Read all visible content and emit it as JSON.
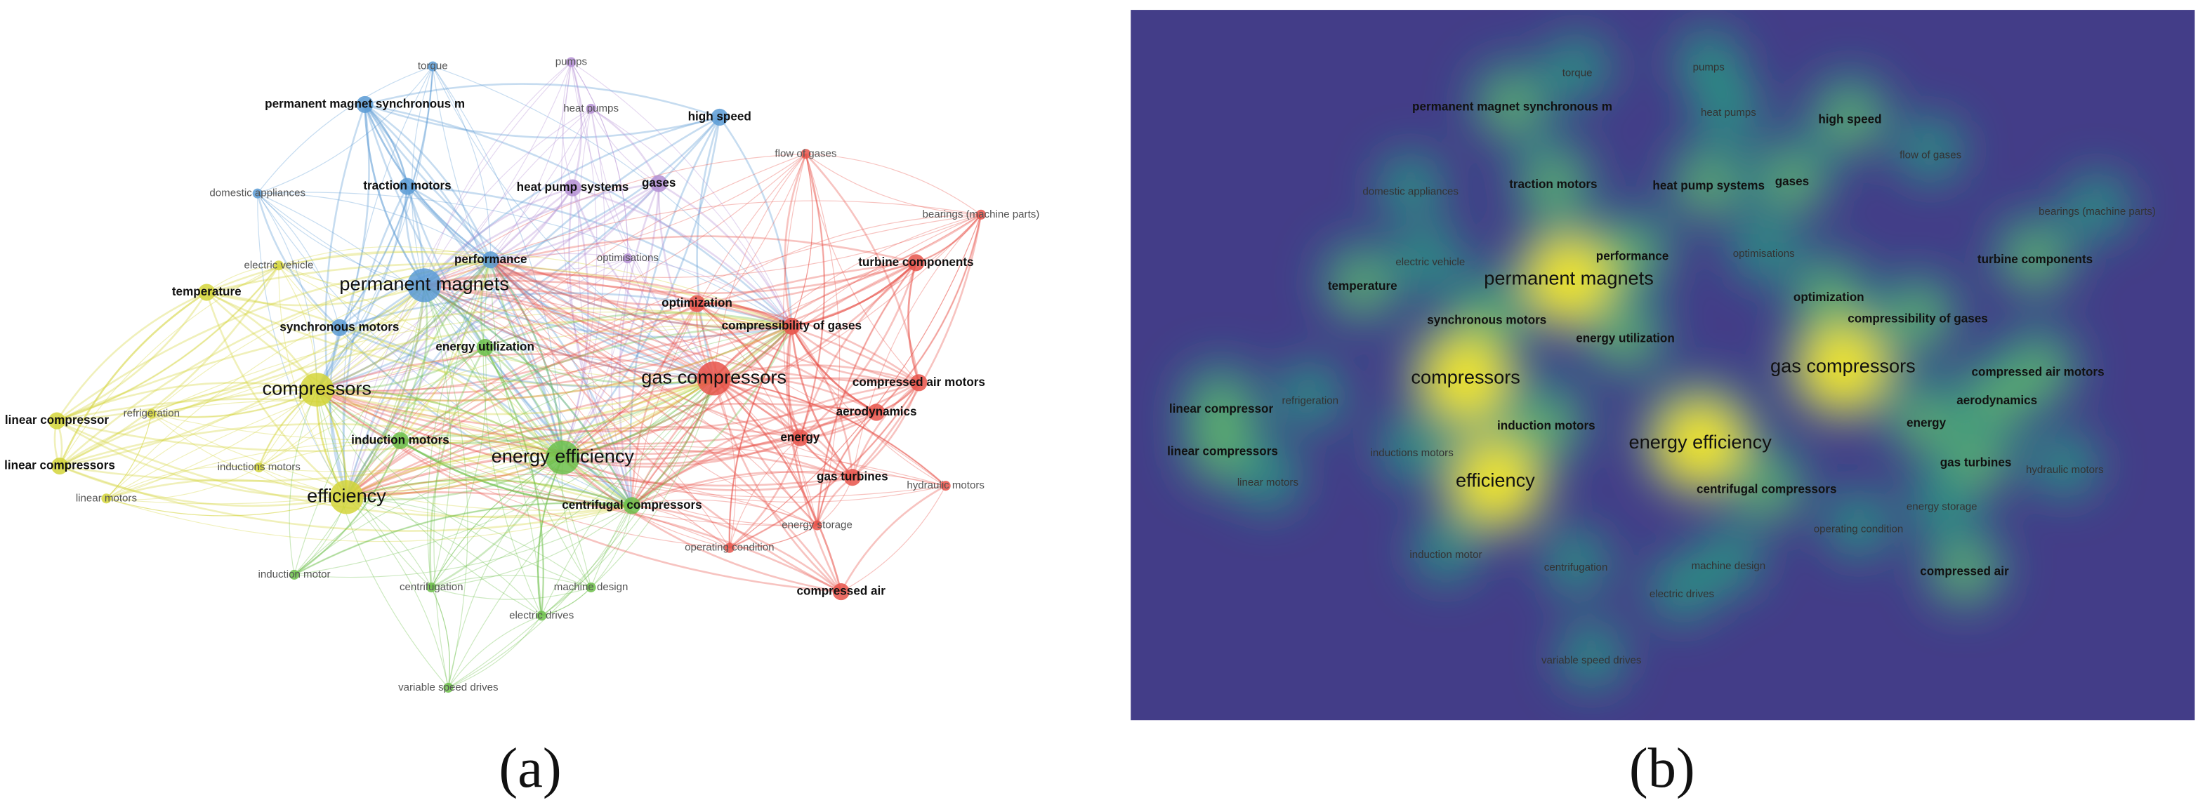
{
  "panel_a": {
    "caption": "(a)",
    "nodes": [
      {
        "label": "torque",
        "color": "#5b9bd5"
      },
      {
        "label": "pumps",
        "color": "#b48fd4"
      },
      {
        "label": "permanent magnet synchronous m",
        "color": "#5b9bd5"
      },
      {
        "label": "heat pumps",
        "color": "#b48fd4"
      },
      {
        "label": "high speed",
        "color": "#5b9bd5"
      },
      {
        "label": "flow of gases",
        "color": "#e8534a"
      },
      {
        "label": "domestic appliances",
        "color": "#5b9bd5"
      },
      {
        "label": "traction motors",
        "color": "#5b9bd5"
      },
      {
        "label": "heat pump systems",
        "color": "#b48fd4"
      },
      {
        "label": "gases",
        "color": "#b48fd4"
      },
      {
        "label": "bearings (machine parts)",
        "color": "#e8534a"
      },
      {
        "label": "turbine components",
        "color": "#e8534a"
      },
      {
        "label": "electric vehicle",
        "color": "#d4d53a"
      },
      {
        "label": "performance",
        "color": "#5b9bd5"
      },
      {
        "label": "optimisations",
        "color": "#b48fd4"
      },
      {
        "label": "temperature",
        "color": "#d4d53a"
      },
      {
        "label": "permanent magnets",
        "color": "#5b9bd5"
      },
      {
        "label": "optimization",
        "color": "#e8534a"
      },
      {
        "label": "synchronous motors",
        "color": "#5b9bd5"
      },
      {
        "label": "compressibility of gases",
        "color": "#e8534a"
      },
      {
        "label": "energy utilization",
        "color": "#6cc04a"
      },
      {
        "label": "gas compressors",
        "color": "#e8534a"
      },
      {
        "label": "compressed air motors",
        "color": "#e8534a"
      },
      {
        "label": "compressors",
        "color": "#d4d53a"
      },
      {
        "label": "linear compressor",
        "color": "#d4d53a"
      },
      {
        "label": "refrigeration",
        "color": "#d4d53a"
      },
      {
        "label": "aerodynamics",
        "color": "#e8534a"
      },
      {
        "label": "induction motors",
        "color": "#6cc04a"
      },
      {
        "label": "energy",
        "color": "#e8534a"
      },
      {
        "label": "energy efficiency",
        "color": "#6cc04a"
      },
      {
        "label": "linear compressors",
        "color": "#d4d53a"
      },
      {
        "label": "inductions motors",
        "color": "#d4d53a"
      },
      {
        "label": "gas turbines",
        "color": "#e8534a"
      },
      {
        "label": "hydraulic motors",
        "color": "#e8534a"
      },
      {
        "label": "efficiency",
        "color": "#d4d53a"
      },
      {
        "label": "linear motors",
        "color": "#d4d53a"
      },
      {
        "label": "centrifugal compressors",
        "color": "#6cc04a"
      },
      {
        "label": "energy storage",
        "color": "#e8534a"
      },
      {
        "label": "operating condition",
        "color": "#e8534a"
      },
      {
        "label": "induction motor",
        "color": "#6cc04a"
      },
      {
        "label": "centrifugation",
        "color": "#6cc04a"
      },
      {
        "label": "machine design",
        "color": "#6cc04a"
      },
      {
        "label": "compressed air",
        "color": "#e8534a"
      },
      {
        "label": "electric drives",
        "color": "#6cc04a"
      },
      {
        "label": "variable speed drives",
        "color": "#6cc04a"
      }
    ]
  },
  "panel_b": {
    "caption": "(b)",
    "nodes": [
      {
        "label": "torque"
      },
      {
        "label": "pumps"
      },
      {
        "label": "permanent magnet synchronous m"
      },
      {
        "label": "heat pumps"
      },
      {
        "label": "high speed"
      },
      {
        "label": "flow of gases"
      },
      {
        "label": "domestic appliances"
      },
      {
        "label": "traction motors"
      },
      {
        "label": "heat pump systems"
      },
      {
        "label": "gases"
      },
      {
        "label": "bearings (machine parts)"
      },
      {
        "label": "turbine components"
      },
      {
        "label": "electric vehicle"
      },
      {
        "label": "performance"
      },
      {
        "label": "optimisations"
      },
      {
        "label": "temperature"
      },
      {
        "label": "permanent magnets"
      },
      {
        "label": "optimization"
      },
      {
        "label": "synchronous motors"
      },
      {
        "label": "compressibility of gases"
      },
      {
        "label": "energy utilization"
      },
      {
        "label": "gas compressors"
      },
      {
        "label": "compressed air motors"
      },
      {
        "label": "compressors"
      },
      {
        "label": "linear compressor"
      },
      {
        "label": "refrigeration"
      },
      {
        "label": "aerodynamics"
      },
      {
        "label": "induction motors"
      },
      {
        "label": "energy"
      },
      {
        "label": "energy efficiency"
      },
      {
        "label": "linear compressors"
      },
      {
        "label": "inductions motors"
      },
      {
        "label": "gas turbines"
      },
      {
        "label": "hydraulic motors"
      },
      {
        "label": "efficiency"
      },
      {
        "label": "linear motors"
      },
      {
        "label": "centrifugal compressors"
      },
      {
        "label": "energy storage"
      },
      {
        "label": "operating condition"
      },
      {
        "label": "induction motor"
      },
      {
        "label": "centrifugation"
      },
      {
        "label": "machine design"
      },
      {
        "label": "compressed air"
      },
      {
        "label": "electric drives"
      },
      {
        "label": "variable speed drives"
      }
    ]
  }
}
